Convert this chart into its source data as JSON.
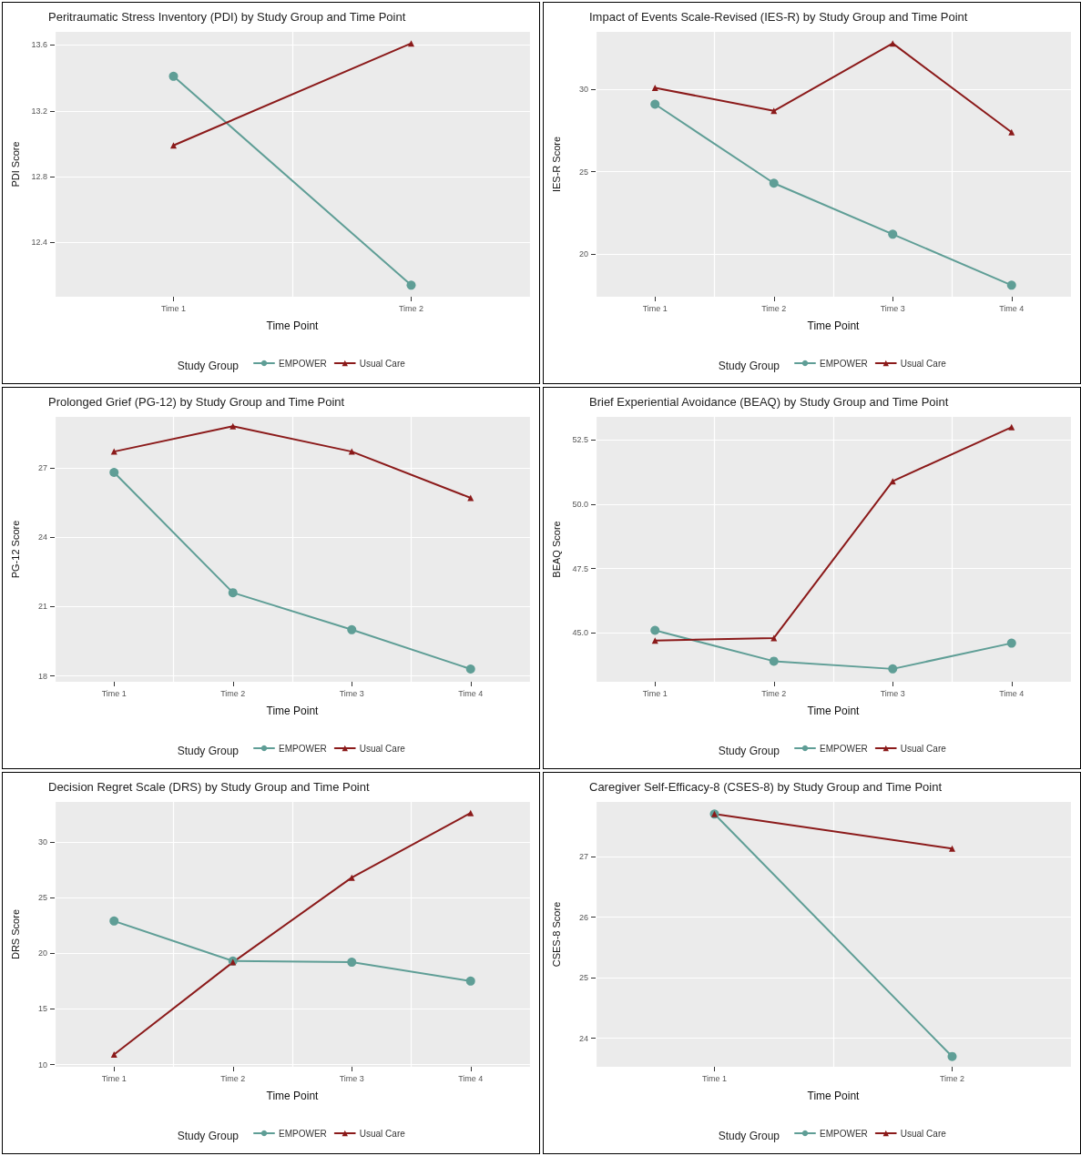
{
  "chart_data": [
    {
      "type": "line",
      "title": "Peritraumatic Stress Inventory (PDI) by Study Group and Time Point",
      "xlabel": "Time Point",
      "ylabel": "PDI Score",
      "legend_title": "Study Group",
      "categories": [
        "Time 1",
        "Time 2"
      ],
      "series": [
        {
          "name": "EMPOWER",
          "color": "#5f9e96",
          "marker": "circle",
          "values": [
            13.41,
            12.14
          ]
        },
        {
          "name": "Usual Care",
          "color": "#8b1a1a",
          "marker": "triangle",
          "values": [
            12.99,
            13.61
          ]
        }
      ],
      "ylim": [
        12.07,
        13.68
      ],
      "yticks": [
        12.4,
        12.8,
        13.2,
        13.6
      ],
      "grid": true,
      "legend": "bottom"
    },
    {
      "type": "line",
      "title": "Impact of Events Scale-Revised (IES-R) by Study Group and Time Point",
      "xlabel": "Time Point",
      "ylabel": "IES-R Score",
      "legend_title": "Study Group",
      "categories": [
        "Time 1",
        "Time 2",
        "Time 3",
        "Time 4"
      ],
      "series": [
        {
          "name": "EMPOWER",
          "color": "#5f9e96",
          "marker": "circle",
          "values": [
            29.1,
            24.3,
            21.2,
            18.1
          ]
        },
        {
          "name": "Usual Care",
          "color": "#8b1a1a",
          "marker": "triangle",
          "values": [
            30.1,
            28.7,
            32.8,
            27.4
          ]
        }
      ],
      "ylim": [
        17.4,
        33.5
      ],
      "yticks": [
        20,
        25,
        30
      ],
      "grid": true,
      "legend": "bottom"
    },
    {
      "type": "line",
      "title": "Prolonged Grief (PG-12) by Study Group and Time Point",
      "xlabel": "Time Point",
      "ylabel": "PG-12 Score",
      "legend_title": "Study Group",
      "categories": [
        "Time 1",
        "Time 2",
        "Time 3",
        "Time 4"
      ],
      "series": [
        {
          "name": "EMPOWER",
          "color": "#5f9e96",
          "marker": "circle",
          "values": [
            26.8,
            21.6,
            20.0,
            18.3
          ]
        },
        {
          "name": "Usual Care",
          "color": "#8b1a1a",
          "marker": "triangle",
          "values": [
            27.7,
            28.8,
            27.7,
            25.7
          ]
        }
      ],
      "ylim": [
        17.75,
        29.2
      ],
      "yticks": [
        18,
        21,
        24,
        27
      ],
      "grid": true,
      "legend": "bottom"
    },
    {
      "type": "line",
      "title": "Brief Experiential Avoidance (BEAQ) by Study Group and Time Point",
      "xlabel": "Time Point",
      "ylabel": "BEAQ Score",
      "legend_title": "Study Group",
      "categories": [
        "Time 1",
        "Time 2",
        "Time 3",
        "Time 4"
      ],
      "series": [
        {
          "name": "EMPOWER",
          "color": "#5f9e96",
          "marker": "circle",
          "values": [
            45.1,
            43.9,
            43.6,
            44.6
          ]
        },
        {
          "name": "Usual Care",
          "color": "#8b1a1a",
          "marker": "triangle",
          "values": [
            44.7,
            44.8,
            50.9,
            53.0
          ]
        }
      ],
      "ylim": [
        43.1,
        53.4
      ],
      "yticks": [
        {
          "value": 45,
          "label": "45.0"
        },
        47.5,
        {
          "value": 50,
          "label": "50.0"
        },
        52.5
      ],
      "grid": true,
      "legend": "bottom"
    },
    {
      "type": "line",
      "title": "Decision Regret Scale (DRS) by Study Group and Time Point",
      "xlabel": "Time Point",
      "ylabel": "DRS Score",
      "legend_title": "Study Group",
      "categories": [
        "Time 1",
        "Time 2",
        "Time 3",
        "Time 4"
      ],
      "series": [
        {
          "name": "EMPOWER",
          "color": "#5f9e96",
          "marker": "circle",
          "values": [
            22.9,
            19.3,
            19.2,
            17.5
          ]
        },
        {
          "name": "Usual Care",
          "color": "#8b1a1a",
          "marker": "triangle",
          "values": [
            10.9,
            19.2,
            26.8,
            32.6
          ]
        }
      ],
      "ylim": [
        9.8,
        33.6
      ],
      "yticks": [
        10,
        15,
        20,
        25,
        30
      ],
      "grid": true,
      "legend": "bottom"
    },
    {
      "type": "line",
      "title": "Caregiver Self-Efficacy-8 (CSES-8) by Study Group and Time Point",
      "xlabel": "Time Point",
      "ylabel": "CSES-8 Score",
      "legend_title": "Study Group",
      "categories": [
        "Time 1",
        "Time 2"
      ],
      "series": [
        {
          "name": "EMPOWER",
          "color": "#5f9e96",
          "marker": "circle",
          "values": [
            27.7,
            23.7
          ]
        },
        {
          "name": "Usual Care",
          "color": "#8b1a1a",
          "marker": "triangle",
          "values": [
            27.7,
            27.13
          ]
        }
      ],
      "ylim": [
        23.53,
        27.9
      ],
      "yticks": [
        24,
        25,
        26,
        27
      ],
      "grid": true,
      "legend": "bottom"
    }
  ]
}
